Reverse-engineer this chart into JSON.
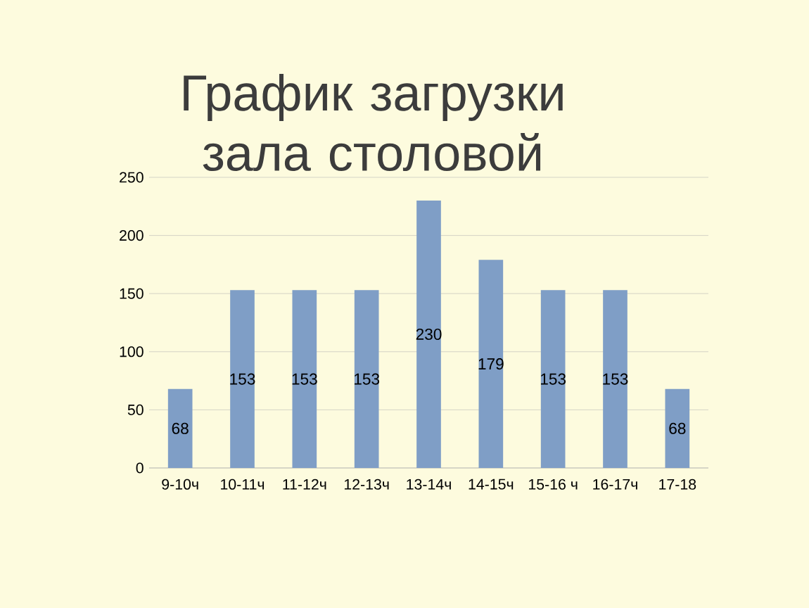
{
  "chart_data": {
    "type": "bar",
    "title": "График загрузки зала столовой",
    "categories": [
      "9-10ч",
      "10-11ч",
      "11-12ч",
      "12-13ч",
      "13-14ч",
      "14-15ч",
      "15-16 ч",
      "16-17ч",
      "17-18"
    ],
    "values": [
      68,
      153,
      153,
      153,
      230,
      179,
      153,
      153,
      68
    ],
    "color": "#7f9ec6",
    "ylim": [
      0,
      250
    ],
    "yticks": [
      0,
      50,
      100,
      150,
      200,
      250
    ],
    "grid": "y",
    "data_labels": true
  }
}
